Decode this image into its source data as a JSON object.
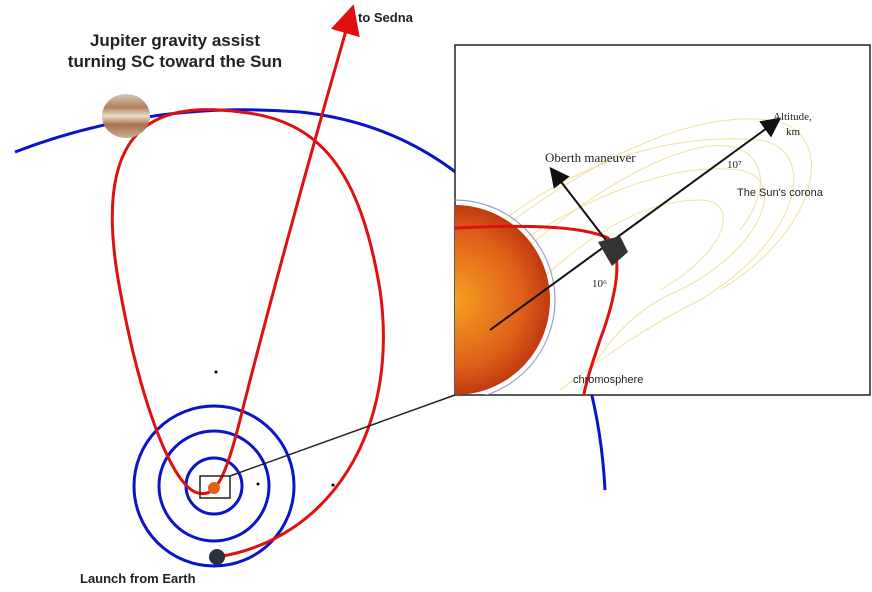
{
  "title_lines": [
    "Jupiter gravity assist",
    "turning SC toward the Sun"
  ],
  "labels": {
    "sedna": "to Sedna",
    "launch": "Launch from Earth"
  },
  "inset": {
    "oberth": "Oberth maneuver",
    "altitude_lines": [
      "Altitude,",
      "km"
    ],
    "tick_high": "10⁷",
    "tick_low": "10⁶",
    "corona": "The Sun's corona",
    "chromosphere": "chromosphere"
  }
}
